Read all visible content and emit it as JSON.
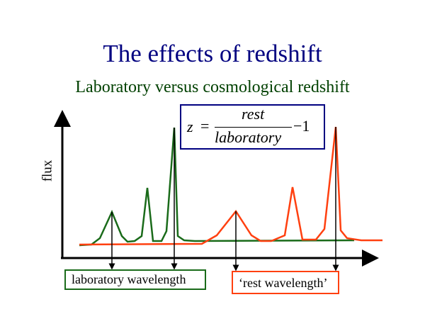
{
  "title": "The effects of redshift",
  "subtitle": "Laboratory versus cosmological redshift",
  "y_axis_label": "flux",
  "formula": {
    "lhs": "z",
    "equals": "=",
    "numerator": "rest",
    "denominator": "laboratory",
    "minus_one": "−1"
  },
  "labels": {
    "laboratory": "laboratory wavelength",
    "rest": "‘rest wavelength’"
  },
  "colors": {
    "title": "#000080",
    "subtitle": "#004000",
    "laboratory": "#1a6b1a",
    "rest": "#ff4010"
  }
}
